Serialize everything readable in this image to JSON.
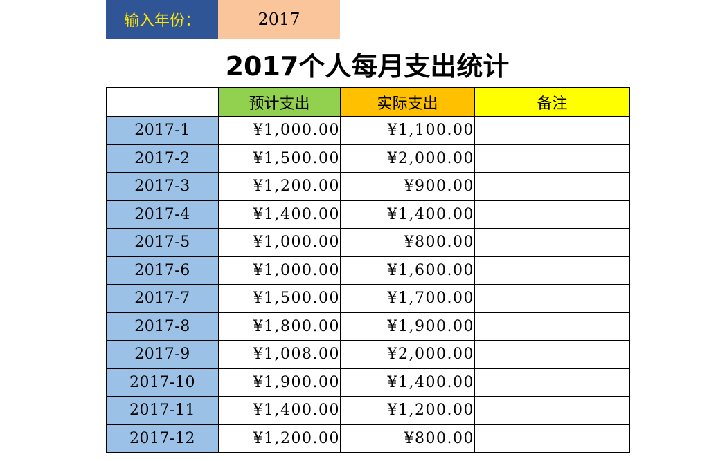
{
  "input": {
    "label": "输入年份：",
    "year": "2017"
  },
  "title": "2017个人每月支出统计",
  "table": {
    "headers": [
      "",
      "预计支出",
      "实际支出",
      "备注"
    ],
    "rows": [
      {
        "month": "2017-1",
        "planned": "¥1,000.00",
        "actual": "¥1,100.00",
        "note": ""
      },
      {
        "month": "2017-2",
        "planned": "¥1,500.00",
        "actual": "¥2,000.00",
        "note": ""
      },
      {
        "month": "2017-3",
        "planned": "¥1,200.00",
        "actual": "¥900.00",
        "note": ""
      },
      {
        "month": "2017-4",
        "planned": "¥1,400.00",
        "actual": "¥1,400.00",
        "note": ""
      },
      {
        "month": "2017-5",
        "planned": "¥1,000.00",
        "actual": "¥800.00",
        "note": ""
      },
      {
        "month": "2017-6",
        "planned": "¥1,000.00",
        "actual": "¥1,600.00",
        "note": ""
      },
      {
        "month": "2017-7",
        "planned": "¥1,500.00",
        "actual": "¥1,700.00",
        "note": ""
      },
      {
        "month": "2017-8",
        "planned": "¥1,800.00",
        "actual": "¥1,900.00",
        "note": ""
      },
      {
        "month": "2017-9",
        "planned": "¥1,008.00",
        "actual": "¥2,000.00",
        "note": ""
      },
      {
        "month": "2017-10",
        "planned": "¥1,900.00",
        "actual": "¥1,400.00",
        "note": ""
      },
      {
        "month": "2017-11",
        "planned": "¥1,400.00",
        "actual": "¥1,200.00",
        "note": ""
      },
      {
        "month": "2017-12",
        "planned": "¥1,200.00",
        "actual": "¥800.00",
        "note": ""
      }
    ]
  },
  "colors": {
    "label_bg": "#2f5597",
    "label_text": "#ffe600",
    "input_bg": "#fac59b",
    "planned_header": "#92d050",
    "actual_header": "#ffc000",
    "note_header": "#ffff00",
    "month_cell": "#9bc2e6"
  }
}
